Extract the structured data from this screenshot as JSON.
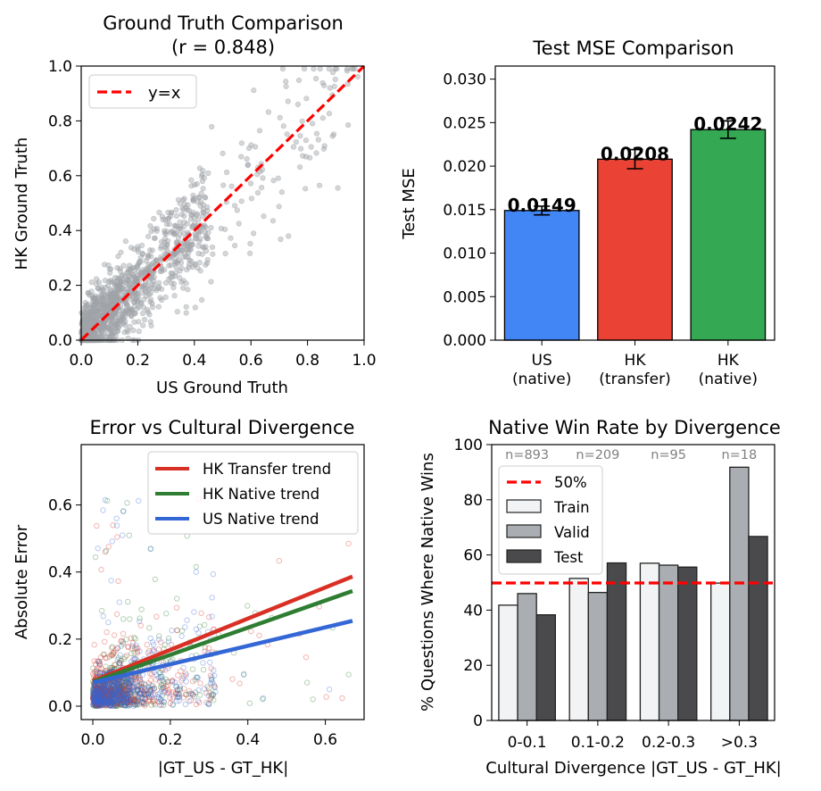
{
  "chart_data": [
    {
      "id": "scatter_gt",
      "type": "scatter",
      "title": "Ground Truth Comparison",
      "subtitle": "(r = 0.848)",
      "xlabel": "US Ground Truth",
      "ylabel": "HK Ground Truth",
      "xlim": [
        0,
        1
      ],
      "ylim": [
        0,
        1
      ],
      "xticks": [
        "0.0",
        "0.2",
        "0.4",
        "0.6",
        "0.8",
        "1.0"
      ],
      "yticks": [
        "0.0",
        "0.2",
        "0.4",
        "0.6",
        "0.8",
        "1.0"
      ],
      "legend": [
        {
          "name": "y=x",
          "color": "#ff0000",
          "style": "dashed"
        }
      ],
      "legend_position": "top-left",
      "point_color": "#a0a3a8",
      "n_points": 1215,
      "correlation": 0.848
    },
    {
      "id": "bar_mse",
      "type": "bar",
      "title": "Test MSE Comparison",
      "ylabel": "Test MSE",
      "categories": [
        [
          "US",
          "(native)"
        ],
        [
          "HK",
          "(transfer)"
        ],
        [
          "HK",
          "(native)"
        ]
      ],
      "values": [
        0.0149,
        0.0208,
        0.0242
      ],
      "errors": [
        0.0005,
        0.0011,
        0.001
      ],
      "labels": [
        "0.0149",
        "0.0208",
        "0.0242"
      ],
      "colors": [
        "#4285f4",
        "#ea4335",
        "#34a853"
      ],
      "ylim": [
        0,
        0.0315
      ],
      "yticks": [
        "0.000",
        "0.005",
        "0.010",
        "0.015",
        "0.020",
        "0.025",
        "0.030"
      ]
    },
    {
      "id": "scatter_error",
      "type": "scatter",
      "title": "Error vs Cultural Divergence",
      "xlabel": "|GT_US - GT_HK|",
      "ylabel": "Absolute Error",
      "xlim": [
        -0.03,
        0.7
      ],
      "ylim": [
        -0.04,
        0.78
      ],
      "xticks": [
        "0.0",
        "0.2",
        "0.4",
        "0.6"
      ],
      "yticks": [
        "0.0",
        "0.2",
        "0.4",
        "0.6"
      ],
      "series": [
        {
          "name": "HK Transfer trend",
          "color": "#d93025",
          "trend": [
            0.075,
            0.465
          ]
        },
        {
          "name": "HK Native trend",
          "color": "#2e7d32",
          "trend": [
            0.072,
            0.405
          ]
        },
        {
          "name": "US Native trend",
          "color": "#3367d6",
          "trend": [
            0.07,
            0.275
          ]
        }
      ],
      "legend_position": "top-right"
    },
    {
      "id": "bar_winrate",
      "type": "bar",
      "title": "Native Win Rate by Divergence",
      "xlabel": "Cultural Divergence |GT_US - GT_HK|",
      "ylabel": "% Questions Where Native Wins",
      "categories": [
        "0-0.1",
        "0.1-0.2",
        "0.2-0.3",
        ">0.3"
      ],
      "counts": [
        "n=893",
        "n=209",
        "n=95",
        "n=18"
      ],
      "series": [
        {
          "name": "Train",
          "color": "#f1f3f4",
          "values": [
            41.8,
            51.5,
            57.0,
            49.8
          ]
        },
        {
          "name": "Valid",
          "color": "#aaaeb2",
          "values": [
            46.0,
            46.4,
            56.3,
            91.8
          ]
        },
        {
          "name": "Test",
          "color": "#4a4a4c",
          "values": [
            38.3,
            57.1,
            55.6,
            66.7
          ]
        }
      ],
      "reference": {
        "name": "50%",
        "value": 50,
        "color": "#ff0000",
        "style": "dashed"
      },
      "ylim": [
        0,
        100
      ],
      "yticks": [
        "0",
        "20",
        "40",
        "60",
        "80",
        "100"
      ],
      "legend_position": "top-left"
    }
  ]
}
